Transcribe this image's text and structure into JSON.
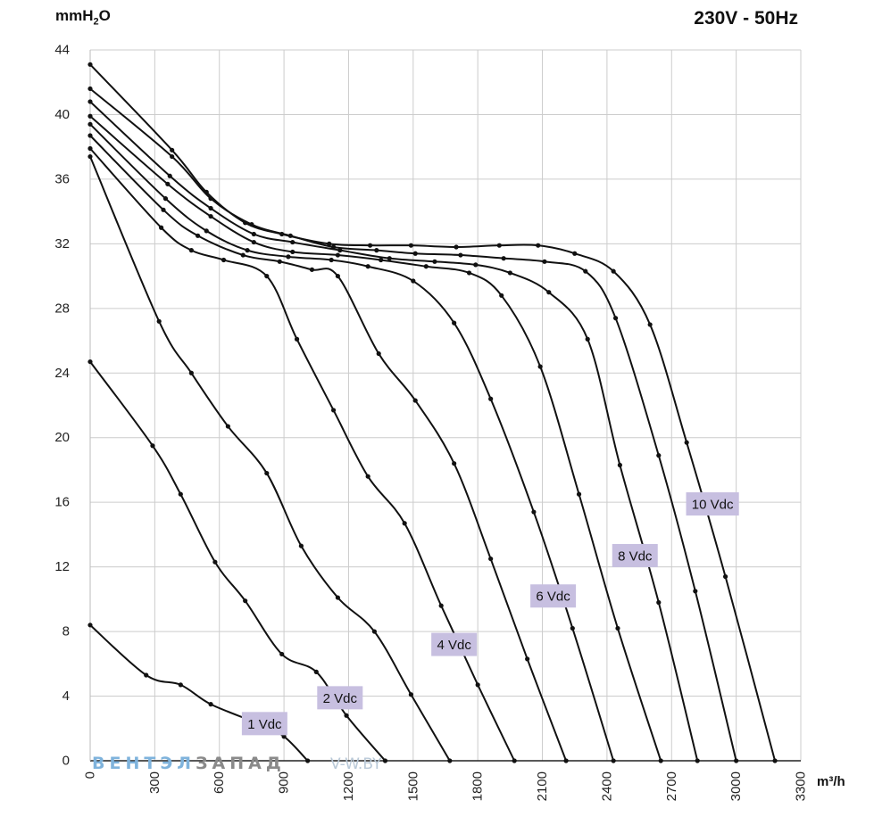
{
  "header": {
    "title": "230V - 50Hz"
  },
  "watermark": {
    "part1": "ВЕНТЭЛ",
    "part2": "ЗАПАД",
    "url": "V-W.BY"
  },
  "colors": {
    "curve": "#111111",
    "label_bg": "#c7bfe0",
    "grid": "#cccccc"
  },
  "chart_data": {
    "type": "line",
    "title": "230V - 50Hz",
    "ylabel": "mmH2O",
    "ylabel_main": "mmH",
    "ylabel_sub": "2",
    "ylabel_tail": "O",
    "xlabel": "m³/h",
    "xlim": [
      0,
      3300
    ],
    "ylim": [
      0,
      44
    ],
    "xticks": [
      0,
      300,
      600,
      900,
      1200,
      1500,
      1800,
      2100,
      2400,
      2700,
      3000,
      3300
    ],
    "yticks": [
      0,
      4,
      8,
      12,
      16,
      20,
      24,
      28,
      32,
      36,
      40,
      44
    ],
    "grid": true,
    "series": [
      {
        "name": "1 Vdc",
        "points": [
          [
            0,
            8.4
          ],
          [
            260,
            5.3
          ],
          [
            420,
            4.7
          ],
          [
            560,
            3.5
          ],
          [
            780,
            2.3
          ],
          [
            900,
            1.5
          ],
          [
            1010,
            0
          ]
        ]
      },
      {
        "name": "2 Vdc",
        "points": [
          [
            0,
            24.7
          ],
          [
            290,
            19.5
          ],
          [
            420,
            16.5
          ],
          [
            580,
            12.3
          ],
          [
            720,
            9.9
          ],
          [
            890,
            6.6
          ],
          [
            1050,
            5.5
          ],
          [
            1190,
            2.8
          ],
          [
            1370,
            0
          ]
        ]
      },
      {
        "name": "",
        "points": [
          [
            0,
            37.4
          ],
          [
            320,
            27.2
          ],
          [
            470,
            24
          ],
          [
            640,
            20.7
          ],
          [
            820,
            17.8
          ],
          [
            980,
            13.3
          ],
          [
            1150,
            10.1
          ],
          [
            1320,
            8
          ],
          [
            1490,
            4.1
          ],
          [
            1670,
            0
          ]
        ]
      },
      {
        "name": "4 Vdc",
        "points": [
          [
            0,
            37.9
          ],
          [
            330,
            33
          ],
          [
            470,
            31.6
          ],
          [
            620,
            31
          ],
          [
            820,
            30
          ],
          [
            960,
            26.1
          ],
          [
            1130,
            21.7
          ],
          [
            1290,
            17.6
          ],
          [
            1460,
            14.7
          ],
          [
            1630,
            9.6
          ],
          [
            1800,
            4.7
          ],
          [
            1970,
            0
          ]
        ]
      },
      {
        "name": "",
        "points": [
          [
            0,
            38.7
          ],
          [
            340,
            34.1
          ],
          [
            500,
            32.5
          ],
          [
            710,
            31.3
          ],
          [
            880,
            30.9
          ],
          [
            1030,
            30.4
          ],
          [
            1150,
            30
          ],
          [
            1340,
            25.2
          ],
          [
            1510,
            22.3
          ],
          [
            1690,
            18.4
          ],
          [
            1860,
            12.5
          ],
          [
            2030,
            6.3
          ],
          [
            2210,
            0
          ]
        ]
      },
      {
        "name": "6 Vdc",
        "points": [
          [
            0,
            39.4
          ],
          [
            350,
            34.8
          ],
          [
            540,
            32.8
          ],
          [
            730,
            31.6
          ],
          [
            920,
            31.2
          ],
          [
            1120,
            31
          ],
          [
            1290,
            30.6
          ],
          [
            1500,
            29.7
          ],
          [
            1690,
            27.1
          ],
          [
            1860,
            22.4
          ],
          [
            2060,
            15.4
          ],
          [
            2240,
            8.2
          ],
          [
            2430,
            0
          ]
        ]
      },
      {
        "name": "",
        "points": [
          [
            0,
            39.9
          ],
          [
            360,
            35.7
          ],
          [
            560,
            33.7
          ],
          [
            760,
            32.1
          ],
          [
            940,
            31.5
          ],
          [
            1150,
            31.3
          ],
          [
            1350,
            31
          ],
          [
            1560,
            30.6
          ],
          [
            1760,
            30.2
          ],
          [
            1910,
            28.8
          ],
          [
            2090,
            24.4
          ],
          [
            2270,
            16.5
          ],
          [
            2450,
            8.2
          ],
          [
            2650,
            0
          ]
        ]
      },
      {
        "name": "8 Vdc",
        "points": [
          [
            0,
            40.8
          ],
          [
            370,
            36.2
          ],
          [
            560,
            34.2
          ],
          [
            760,
            32.6
          ],
          [
            940,
            32.1
          ],
          [
            1160,
            31.6
          ],
          [
            1390,
            31.1
          ],
          [
            1600,
            30.9
          ],
          [
            1790,
            30.7
          ],
          [
            1950,
            30.2
          ],
          [
            2130,
            29
          ],
          [
            2310,
            26.1
          ],
          [
            2460,
            18.3
          ],
          [
            2640,
            9.8
          ],
          [
            2820,
            0
          ]
        ]
      },
      {
        "name": "",
        "points": [
          [
            0,
            41.6
          ],
          [
            380,
            37.4
          ],
          [
            560,
            34.8
          ],
          [
            750,
            33.2
          ],
          [
            930,
            32.5
          ],
          [
            1130,
            31.8
          ],
          [
            1330,
            31.6
          ],
          [
            1510,
            31.4
          ],
          [
            1720,
            31.3
          ],
          [
            1920,
            31.1
          ],
          [
            2110,
            30.9
          ],
          [
            2300,
            30.3
          ],
          [
            2440,
            27.4
          ],
          [
            2640,
            18.9
          ],
          [
            2810,
            10.5
          ],
          [
            3000,
            0
          ]
        ]
      },
      {
        "name": "10 Vdc",
        "points": [
          [
            0,
            43.1
          ],
          [
            380,
            37.8
          ],
          [
            540,
            35.2
          ],
          [
            720,
            33.3
          ],
          [
            890,
            32.6
          ],
          [
            1110,
            32
          ],
          [
            1300,
            31.9
          ],
          [
            1490,
            31.9
          ],
          [
            1700,
            31.8
          ],
          [
            1900,
            31.9
          ],
          [
            2080,
            31.9
          ],
          [
            2250,
            31.4
          ],
          [
            2430,
            30.3
          ],
          [
            2600,
            27
          ],
          [
            2770,
            19.7
          ],
          [
            2950,
            11.4
          ],
          [
            3180,
            0
          ]
        ]
      }
    ],
    "label_anchors": {
      "1 Vdc": [
        810,
        2.3
      ],
      "2 Vdc": [
        1160,
        3.9
      ],
      "4 Vdc": [
        1690,
        7.2
      ],
      "6 Vdc": [
        2150,
        10.2
      ],
      "8 Vdc": [
        2530,
        12.7
      ],
      "10 Vdc": [
        2890,
        15.9
      ]
    }
  }
}
